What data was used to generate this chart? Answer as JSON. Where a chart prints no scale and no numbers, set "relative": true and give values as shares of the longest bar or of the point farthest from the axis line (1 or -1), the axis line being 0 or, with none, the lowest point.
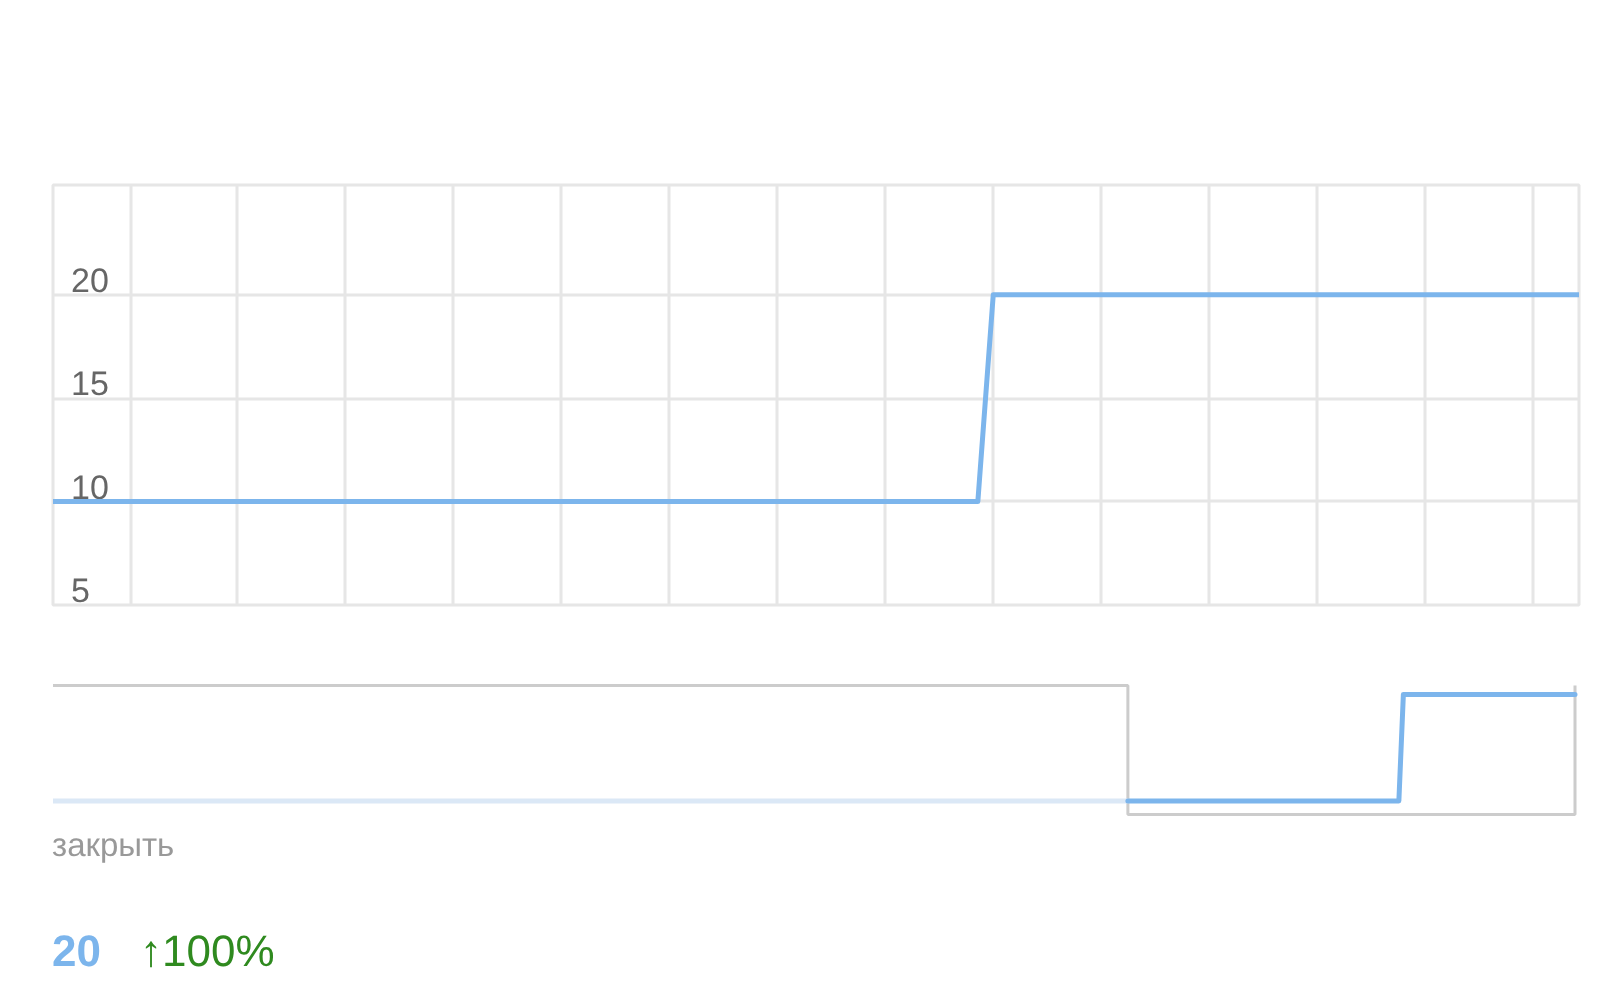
{
  "chart_data": [
    {
      "type": "line",
      "tick_labels": "y",
      "grid": true,
      "ylim": [
        5,
        25.3
      ],
      "yticks": [
        5,
        10,
        15,
        20
      ],
      "categories": [
        null,
        null,
        null,
        null,
        null,
        null,
        null,
        null,
        null,
        null,
        null,
        null,
        null,
        null,
        null,
        null,
        null,
        null,
        null,
        null,
        null,
        null,
        null,
        null,
        null,
        null,
        null,
        null,
        null,
        null,
        null,
        null,
        null,
        null,
        null,
        null,
        null,
        null,
        null,
        null,
        null,
        null,
        null,
        null,
        null,
        null,
        null,
        null,
        null,
        null,
        null,
        null,
        null,
        null,
        null,
        null,
        null,
        null,
        null,
        null,
        null,
        null,
        null,
        null,
        null,
        null,
        null,
        null,
        null,
        null,
        null,
        null,
        null,
        null,
        null,
        null,
        null,
        null,
        null,
        null,
        null,
        null,
        null,
        null,
        null,
        null,
        null,
        null,
        null,
        null,
        null,
        null,
        null,
        null,
        null,
        null,
        null,
        null,
        null,
        null
      ],
      "series": [
        {
          "color": "#7cb5ec",
          "values": [
            10,
            10,
            10,
            10,
            10,
            10,
            10,
            10,
            10,
            10,
            10,
            10,
            10,
            10,
            10,
            10,
            10,
            10,
            10,
            10,
            10,
            10,
            10,
            10,
            10,
            10,
            10,
            10,
            10,
            10,
            10,
            10,
            10,
            10,
            10,
            10,
            10,
            10,
            10,
            10,
            10,
            10,
            10,
            10,
            10,
            10,
            10,
            10,
            10,
            10,
            10,
            10,
            10,
            10,
            10,
            10,
            10,
            10,
            10,
            10,
            10,
            20,
            20,
            20,
            20,
            20,
            20,
            20,
            20,
            20,
            20,
            20,
            20,
            20,
            20,
            20,
            20,
            20,
            20,
            20,
            20,
            20,
            20,
            20,
            20,
            20,
            20,
            20,
            20,
            20,
            20,
            20,
            20,
            20,
            20,
            20,
            20,
            20,
            20,
            20
          ]
        }
      ]
    },
    {
      "type": "line",
      "relative": true,
      "categories": [
        null,
        null,
        null,
        null,
        null,
        null,
        null,
        null,
        null,
        null,
        null,
        null,
        null,
        null,
        null,
        null,
        null,
        null,
        null,
        null,
        null,
        null,
        null,
        null,
        null,
        null,
        null,
        null,
        null,
        null,
        null,
        null,
        null,
        null,
        null,
        null,
        null,
        null,
        null,
        null,
        null,
        null,
        null,
        null,
        null,
        null,
        null,
        null,
        null,
        null,
        null,
        null,
        null,
        null,
        null,
        null,
        null,
        null,
        null,
        null,
        null,
        null,
        null,
        null,
        null,
        null,
        null,
        null,
        null,
        null,
        null,
        null,
        null,
        null,
        null,
        null,
        null,
        null,
        null,
        null,
        null,
        null,
        null,
        null,
        null,
        null,
        null,
        null,
        null,
        null,
        null,
        null,
        null,
        null,
        null,
        null,
        null,
        null,
        null,
        null,
        null,
        null,
        null,
        null,
        null,
        null,
        null,
        null,
        null,
        null,
        null,
        null,
        null,
        null,
        null,
        null,
        null,
        null,
        null,
        null,
        null,
        null,
        null,
        null,
        null,
        null,
        null,
        null,
        null,
        null,
        null,
        null,
        null,
        null,
        null,
        null,
        null,
        null,
        null,
        null,
        null,
        null,
        null,
        null,
        null,
        null,
        null,
        null,
        null,
        null,
        null,
        null,
        null,
        null,
        null,
        null,
        null,
        null,
        null,
        null,
        null,
        null,
        null,
        null,
        null,
        null,
        null,
        null,
        null,
        null,
        null,
        null,
        null,
        null,
        null,
        null,
        null,
        null,
        null,
        null,
        null,
        null,
        null,
        null,
        null,
        null,
        null,
        null,
        null,
        null,
        null,
        null,
        null,
        null,
        null,
        null,
        null,
        null,
        null,
        null,
        null,
        null,
        null,
        null,
        null,
        null,
        null,
        null,
        null,
        null,
        null,
        null,
        null,
        null,
        null,
        null,
        null,
        null,
        null,
        null,
        null,
        null,
        null,
        null,
        null,
        null,
        null,
        null,
        null,
        null,
        null,
        null,
        null,
        null,
        null,
        null,
        null,
        null,
        null,
        null,
        null,
        null,
        null,
        null,
        null,
        null,
        null,
        null,
        null,
        null,
        null,
        null,
        null,
        null,
        null,
        null,
        null,
        null,
        null,
        null,
        null,
        null,
        null,
        null,
        null,
        null,
        null,
        null,
        null,
        null,
        null,
        null,
        null,
        null,
        null,
        null,
        null,
        null,
        null,
        null,
        null,
        null,
        null,
        null,
        null,
        null,
        null,
        null,
        null,
        null,
        null,
        null,
        null,
        null,
        null,
        null,
        null,
        null,
        null,
        null,
        null,
        null,
        null,
        null,
        null,
        null,
        null,
        null,
        null,
        null,
        null,
        null,
        null,
        null,
        null,
        null,
        null,
        null,
        null,
        null,
        null,
        null,
        null,
        null,
        null,
        null,
        null,
        null,
        null,
        null,
        null,
        null,
        null,
        null,
        null,
        null,
        null,
        null
      ],
      "series": [
        {
          "color": "#dbe8f6",
          "values": [
            0,
            0,
            0,
            0,
            0,
            0,
            0,
            0,
            0,
            0,
            0,
            0,
            0,
            0,
            0,
            0,
            0,
            0,
            0,
            0,
            0,
            0,
            0,
            0,
            0,
            0,
            0,
            0,
            0,
            0,
            0,
            0,
            0,
            0,
            0,
            0,
            0,
            0,
            0,
            0,
            0,
            0,
            0,
            0,
            0,
            0,
            0,
            0,
            0,
            0,
            0,
            0,
            0,
            0,
            0,
            0,
            0,
            0,
            0,
            0,
            0,
            0,
            0,
            0,
            0,
            0,
            0,
            0,
            0,
            0,
            0,
            0,
            0,
            0,
            0,
            0,
            0,
            0,
            0,
            0,
            0,
            0,
            0,
            0,
            0,
            0,
            0,
            0,
            0,
            0,
            0,
            0,
            0,
            0,
            0,
            0,
            0,
            0,
            0,
            0,
            0,
            0,
            0,
            0,
            0,
            0,
            0,
            0,
            0,
            0,
            0,
            0,
            0,
            0,
            0,
            0,
            0,
            0,
            0,
            0,
            0,
            0,
            0,
            0,
            0,
            0,
            0,
            0,
            0,
            0,
            0,
            0,
            0,
            0,
            0,
            0,
            0,
            0,
            0,
            0,
            0,
            0,
            0,
            0,
            0,
            0,
            0,
            0,
            0,
            0,
            0,
            0,
            0,
            0,
            0,
            0,
            0,
            0,
            0,
            0,
            0,
            0,
            0,
            0,
            0,
            0,
            0,
            0,
            0,
            0,
            0,
            0,
            0,
            0,
            0,
            0,
            0,
            0,
            0,
            0,
            0,
            0,
            0,
            0,
            0,
            0,
            0,
            0,
            0,
            0,
            0,
            0,
            0,
            0,
            0,
            0,
            0,
            0,
            0,
            0,
            0,
            0,
            0,
            0,
            0,
            0,
            0,
            0,
            0,
            0,
            0,
            0,
            0,
            0,
            0,
            0,
            0,
            0,
            0,
            0,
            0,
            0,
            0,
            0,
            0,
            0,
            0,
            0,
            0,
            0,
            0,
            0,
            0,
            0,
            0,
            0,
            0,
            0,
            0,
            null,
            null,
            null,
            null,
            null,
            null,
            null,
            null,
            null,
            null,
            null,
            null,
            null,
            null,
            null,
            null,
            null,
            null,
            null,
            null,
            null,
            null,
            null,
            null,
            null,
            null,
            null,
            null,
            null,
            null,
            null,
            null,
            null,
            null,
            null,
            null,
            null,
            null,
            null,
            null,
            null,
            null,
            null,
            null,
            null,
            null,
            null,
            null,
            null,
            null,
            null,
            null,
            null,
            null,
            null,
            null,
            null,
            null,
            null,
            null,
            null,
            null,
            null,
            null,
            null,
            null,
            null,
            null,
            null,
            null,
            null,
            null,
            null,
            null,
            null,
            null,
            null,
            null,
            null,
            null,
            null,
            null,
            null,
            null,
            null,
            null,
            null,
            null,
            null,
            null,
            null,
            null,
            null,
            null,
            null,
            null,
            null,
            null,
            null
          ]
        },
        {
          "color": "#7cb5ec",
          "values": [
            null,
            null,
            null,
            null,
            null,
            null,
            null,
            null,
            null,
            null,
            null,
            null,
            null,
            null,
            null,
            null,
            null,
            null,
            null,
            null,
            null,
            null,
            null,
            null,
            null,
            null,
            null,
            null,
            null,
            null,
            null,
            null,
            null,
            null,
            null,
            null,
            null,
            null,
            null,
            null,
            null,
            null,
            null,
            null,
            null,
            null,
            null,
            null,
            null,
            null,
            null,
            null,
            null,
            null,
            null,
            null,
            null,
            null,
            null,
            null,
            null,
            null,
            null,
            null,
            null,
            null,
            null,
            null,
            null,
            null,
            null,
            null,
            null,
            null,
            null,
            null,
            null,
            null,
            null,
            null,
            null,
            null,
            null,
            null,
            null,
            null,
            null,
            null,
            null,
            null,
            null,
            null,
            null,
            null,
            null,
            null,
            null,
            null,
            null,
            null,
            null,
            null,
            null,
            null,
            null,
            null,
            null,
            null,
            null,
            null,
            null,
            null,
            null,
            null,
            null,
            null,
            null,
            null,
            null,
            null,
            null,
            null,
            null,
            null,
            null,
            null,
            null,
            null,
            null,
            null,
            null,
            null,
            null,
            null,
            null,
            null,
            null,
            null,
            null,
            null,
            null,
            null,
            null,
            null,
            null,
            null,
            null,
            null,
            null,
            null,
            null,
            null,
            null,
            null,
            null,
            null,
            null,
            null,
            null,
            null,
            null,
            null,
            null,
            null,
            null,
            null,
            null,
            null,
            null,
            null,
            null,
            null,
            null,
            null,
            null,
            null,
            null,
            null,
            null,
            null,
            null,
            null,
            null,
            null,
            null,
            null,
            null,
            null,
            null,
            null,
            null,
            null,
            null,
            null,
            null,
            null,
            null,
            null,
            null,
            null,
            null,
            null,
            null,
            null,
            null,
            null,
            null,
            null,
            null,
            null,
            null,
            null,
            null,
            null,
            null,
            null,
            null,
            null,
            null,
            null,
            null,
            null,
            null,
            null,
            null,
            null,
            null,
            null,
            null,
            null,
            null,
            null,
            null,
            null,
            null,
            null,
            null,
            null,
            0,
            0,
            0,
            0,
            0,
            0,
            0,
            0,
            0,
            0,
            0,
            0,
            0,
            0,
            0,
            0,
            0,
            0,
            0,
            0,
            0,
            0,
            0,
            0,
            0,
            0,
            0,
            0,
            0,
            0,
            0,
            0,
            0,
            0,
            0,
            0,
            0,
            0,
            0,
            0,
            0,
            0,
            0,
            0,
            0,
            0,
            0,
            0,
            0,
            0,
            0,
            0,
            0,
            0,
            0,
            0,
            0,
            0,
            0,
            0,
            0,
            1,
            1,
            1,
            1,
            1,
            1,
            1,
            1,
            1,
            1,
            1,
            1,
            1,
            1,
            1,
            1,
            1,
            1,
            1,
            1,
            1,
            1,
            1,
            1,
            1,
            1,
            1,
            1,
            1,
            1,
            1,
            1,
            1,
            1,
            1,
            1,
            1,
            1,
            1
          ]
        }
      ],
      "annotations": [
        "закрыть",
        "20",
        "↑100%"
      ]
    }
  ]
}
